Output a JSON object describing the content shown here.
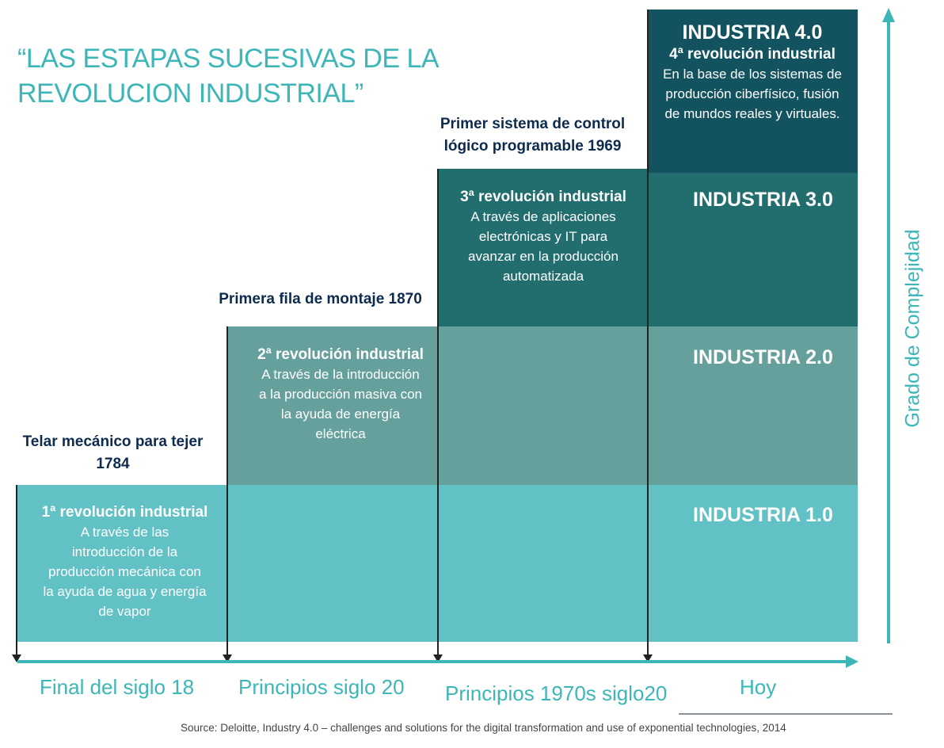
{
  "title": {
    "line1": "“LAS ESTAPAS SUCESIVAS DE LA",
    "line2": "REVOLUCION INDUSTRIAL”"
  },
  "stages": [
    {
      "industry": "INDUSTRIA 1.0",
      "heading": "1ª revolución industrial",
      "lines": [
        "A través de las",
        "introducción de la",
        "producción mecánica con",
        "la ayuda de agua y energía",
        "de vapor"
      ],
      "milestone": [
        "Telar mecánico para tejer",
        "1784"
      ],
      "period": "Final del siglo 18"
    },
    {
      "industry": "INDUSTRIA 2.0",
      "heading": "2ª revolución industrial",
      "lines": [
        "A través de la introducción",
        "a la producción masiva con",
        "la ayuda de energía",
        "eléctrica"
      ],
      "milestone": [
        "Primera fila de montaje 1870"
      ],
      "period": "Principios siglo 20"
    },
    {
      "industry": "INDUSTRIA 3.0",
      "heading": "3ª revolución industrial",
      "lines": [
        "A través de aplicaciones",
        "electrónicas y IT para",
        "avanzar en la producción",
        "automatizada"
      ],
      "milestone": [
        "Primer sistema de control",
        "lógico programable 1969"
      ],
      "period": "Principios 1970s siglo20"
    },
    {
      "industry": "INDUSTRIA 4.0",
      "heading": "4ª revolución industrial",
      "lines": [
        "En la base de los sistemas de",
        "producción ciberfísico, fusión",
        "de mundos reales y virtuales."
      ],
      "period": "Hoy"
    }
  ],
  "y_axis_label": "Grado de Complejidad",
  "source": "Source: Deloitte, Industry 4.0 – challenges and solutions for the digital transformation and use of exponential technologies, 2014",
  "colors": {
    "accent": "#3db6b8",
    "industry1": "#62c1c5",
    "industry2": "#66a09d",
    "industry3": "#226e6f",
    "industry4": "#12535f",
    "milestone_text": "#0d2b4e"
  }
}
